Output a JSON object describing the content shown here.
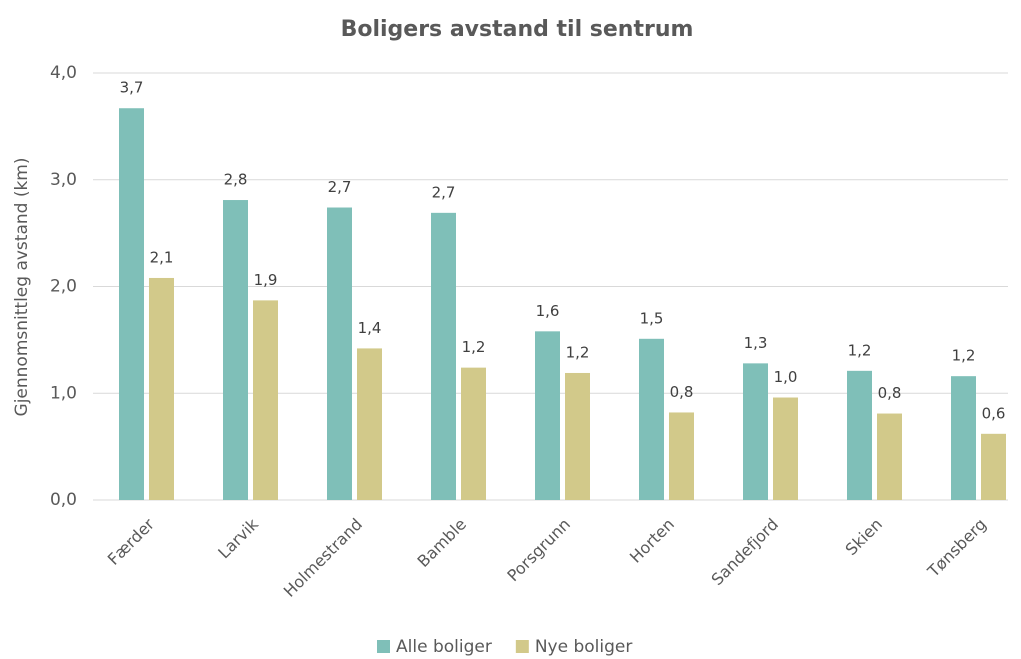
{
  "chart_data": {
    "type": "bar",
    "title": "Boligers avstand til sentrum",
    "y_label": "Gjennomsnittleg avstand (km)",
    "categories": [
      "Færder",
      "Larvik",
      "Holmestrand",
      "Bamble",
      "Porsgrunn",
      "Horten",
      "Sandefjord",
      "Skien",
      "Tønsberg"
    ],
    "series": [
      {
        "name": "Alle boliger",
        "color": "#7fbfb8",
        "values": [
          3.67,
          2.81,
          2.74,
          2.69,
          1.58,
          1.51,
          1.28,
          1.21,
          1.16
        ],
        "value_labels": [
          "3,7",
          "2,8",
          "2,7",
          "2,7",
          "1,6",
          "1,5",
          "1,3",
          "1,2",
          "1,2"
        ]
      },
      {
        "name": "Nye boliger",
        "color": "#d2c98a",
        "values": [
          2.08,
          1.87,
          1.42,
          1.24,
          1.19,
          0.82,
          0.96,
          0.81,
          0.62
        ],
        "value_labels": [
          "2,1",
          "1,9",
          "1,4",
          "1,2",
          "1,2",
          "0,8",
          "1,0",
          "0,8",
          "0,6"
        ]
      }
    ],
    "ylim": [
      0,
      4
    ],
    "yticks": [
      {
        "value": 0,
        "label": "0,0"
      },
      {
        "value": 1,
        "label": "1,0"
      },
      {
        "value": 2,
        "label": "2,0"
      },
      {
        "value": 3,
        "label": "3,0"
      },
      {
        "value": 4,
        "label": "4,0"
      }
    ],
    "grid": true,
    "legend": "bottom"
  }
}
